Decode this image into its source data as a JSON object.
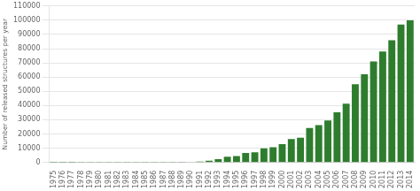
{
  "chart_data": {
    "type": "bar",
    "ylabel": "Number of released structures per year",
    "categories": [
      1975,
      1976,
      1977,
      1978,
      1979,
      1980,
      1981,
      1982,
      1983,
      1984,
      1985,
      1986,
      1987,
      1988,
      1989,
      1990,
      1991,
      1992,
      1993,
      1994,
      1995,
      1996,
      1997,
      1998,
      1999,
      2000,
      2001,
      2002,
      2003,
      2004,
      2005,
      2006,
      2007,
      2008,
      2009,
      2010,
      2011,
      2012,
      2013,
      2014
    ],
    "values": [
      6,
      7,
      5,
      14,
      23,
      20,
      18,
      22,
      18,
      28,
      38,
      55,
      55,
      88,
      130,
      190,
      540,
      1100,
      2200,
      3900,
      4500,
      6600,
      7100,
      9900,
      10600,
      12800,
      16400,
      17400,
      24200,
      26200,
      29500,
      35200,
      41300,
      55000,
      62000,
      71000,
      78000,
      86000,
      97000,
      100000
    ],
    "color": "#2e7d2e",
    "ylim": [
      0,
      110000
    ],
    "yticks": [
      0,
      10000,
      20000,
      30000,
      40000,
      50000,
      60000,
      70000,
      80000,
      90000,
      100000,
      110000
    ],
    "grid": true
  }
}
